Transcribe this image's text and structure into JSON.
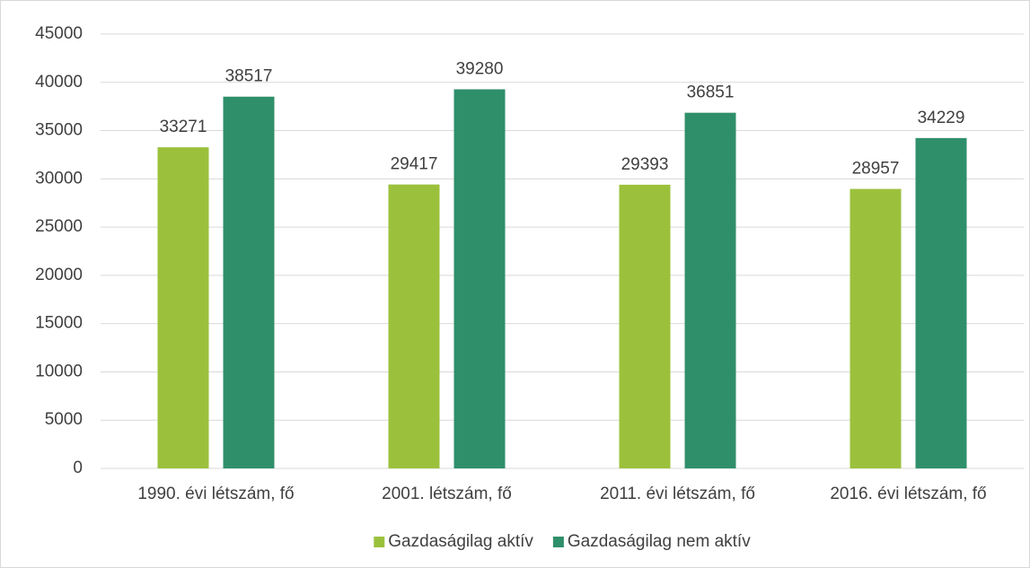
{
  "chart_data": {
    "type": "bar",
    "categories": [
      "1990. évi létszám, fő",
      "2001. létszám, fő",
      "2011. évi létszám, fő",
      "2016. évi létszám, fő"
    ],
    "series": [
      {
        "name": "Gazdaságilag aktív",
        "color": "#9bc13c",
        "values": [
          33271,
          29417,
          29393,
          28957
        ]
      },
      {
        "name": "Gazdaságilag nem aktív",
        "color": "#2f8f6b",
        "values": [
          38517,
          39280,
          36851,
          34229
        ]
      }
    ],
    "ylim": [
      0,
      45000
    ],
    "yticks": [
      0,
      5000,
      10000,
      15000,
      20000,
      25000,
      30000,
      35000,
      40000,
      45000
    ],
    "grid": true,
    "legend": "bottom"
  }
}
